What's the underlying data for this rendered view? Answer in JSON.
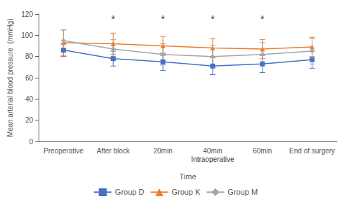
{
  "chart_data": {
    "type": "line",
    "categories": [
      "Preoperative",
      "After block",
      "20min",
      "40min",
      "60min",
      "End of surgery"
    ],
    "series": [
      {
        "name": "Group D",
        "color": "#4472C4",
        "marker": "square",
        "values": [
          86,
          78,
          75,
          71,
          73,
          77
        ],
        "errors": [
          6,
          7,
          8,
          8,
          8,
          8
        ]
      },
      {
        "name": "Group K",
        "color": "#ED7D31",
        "marker": "triangle",
        "values": [
          93,
          92,
          90,
          88,
          87,
          89
        ],
        "errors": [
          12,
          10,
          9,
          9,
          9,
          9
        ]
      },
      {
        "name": "Group M",
        "color": "#A5A5A5",
        "marker": "diamond",
        "values": [
          95,
          87,
          82,
          80,
          82,
          85
        ],
        "errors": [
          10,
          9,
          10,
          10,
          11,
          12
        ]
      }
    ],
    "ylabel": "Mean arterial blood pressure  (mmHg)",
    "xlabel": "Time",
    "ylim": [
      0,
      120
    ],
    "yticks": [
      0,
      20,
      40,
      60,
      80,
      100,
      120
    ],
    "grid": false,
    "legend": "bottom",
    "annotations": [
      {
        "text": "*",
        "x": "After block",
        "y": 111
      },
      {
        "text": "*",
        "x": "20min",
        "y": 111
      },
      {
        "text": "*",
        "x": "40min",
        "y": 111
      },
      {
        "text": "*",
        "x": "60min",
        "y": 111
      },
      {
        "text": "Intraoperative",
        "x": "40min"
      }
    ]
  }
}
